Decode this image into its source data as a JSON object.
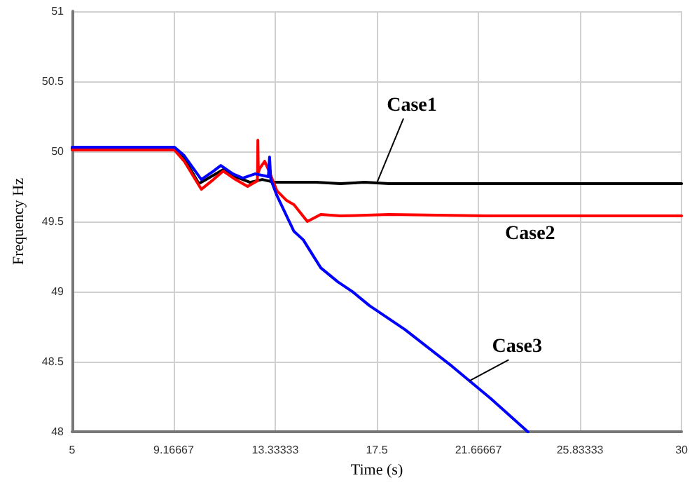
{
  "chart_data": {
    "type": "line",
    "xlabel": "Time (s)",
    "ylabel": "Frequency Hz",
    "xlim": [
      5,
      30
    ],
    "xticks": [
      5,
      9.16667,
      13.33333,
      17.5,
      21.66667,
      25.83333,
      30
    ],
    "ylim": [
      48,
      51
    ],
    "yticks": [
      48,
      48.5,
      49,
      49.5,
      50,
      50.5,
      51
    ],
    "grid": true,
    "legend": false,
    "marker": "none",
    "line_style": "solid",
    "series": [
      {
        "name": "Case1",
        "color": "#000000",
        "x": [
          5,
          9.2,
          9.6,
          10.2,
          10.7,
          11.2,
          11.7,
          12.3,
          12.8,
          13.3,
          14,
          15,
          16,
          17,
          18,
          20,
          24,
          30
        ],
        "values": [
          50.02,
          50.02,
          49.95,
          49.77,
          49.82,
          49.87,
          49.82,
          49.78,
          49.8,
          49.78,
          49.78,
          49.78,
          49.77,
          49.78,
          49.77,
          49.77,
          49.77,
          49.77
        ]
      },
      {
        "name": "Case2",
        "color": "#ff0000",
        "x": [
          5,
          9.2,
          9.6,
          10.3,
          10.8,
          11.2,
          11.7,
          12.2,
          12.6,
          12.62,
          12.64,
          12.7,
          12.9,
          13.1,
          13.4,
          13.8,
          14.1,
          14.65,
          15.2,
          16,
          18,
          22,
          30
        ],
        "values": [
          50.01,
          50.01,
          49.93,
          49.73,
          49.8,
          49.86,
          49.8,
          49.75,
          49.79,
          50.08,
          49.85,
          49.88,
          49.93,
          49.85,
          49.72,
          49.65,
          49.62,
          49.5,
          49.55,
          49.54,
          49.55,
          49.54,
          49.54
        ]
      },
      {
        "name": "Case3",
        "color": "#0000ff",
        "x": [
          5,
          9.2,
          9.6,
          10.3,
          10.8,
          11.1,
          11.6,
          12,
          12.5,
          13.05,
          13.1,
          13.15,
          13.39,
          14.1,
          14.48,
          15.2,
          15.9,
          16.5,
          17.2,
          18.65,
          20.57,
          22.16,
          23.7
        ],
        "values": [
          50.03,
          50.03,
          49.97,
          49.8,
          49.86,
          49.9,
          49.84,
          49.81,
          49.84,
          49.82,
          49.96,
          49.8,
          49.69,
          49.43,
          49.37,
          49.17,
          49.07,
          49.0,
          48.9,
          48.73,
          48.47,
          48.24,
          48.0
        ]
      }
    ]
  }
}
